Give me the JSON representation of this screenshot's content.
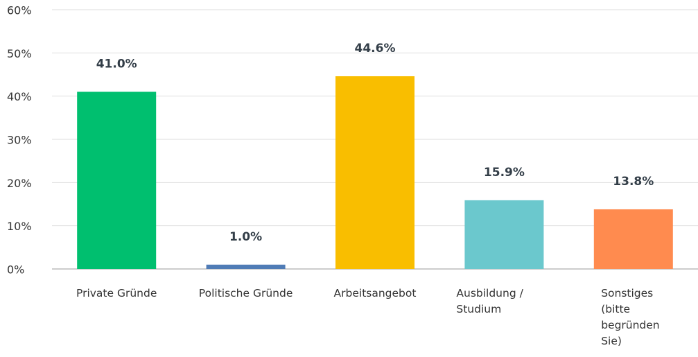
{
  "chart_data": {
    "type": "bar",
    "categories": [
      "Private Gründe",
      "Politische Gründe",
      "Arbeitsangebot",
      "Ausbildung / Studium",
      "Sonstiges (bitte begründen Sie)"
    ],
    "values": [
      41.0,
      1.0,
      44.6,
      15.9,
      13.8
    ],
    "value_labels": [
      "41.0%",
      "1.0%",
      "44.6%",
      "15.9%",
      "13.8%"
    ],
    "colors": [
      "#00bf6f",
      "#507cb6",
      "#f9be00",
      "#6bc8cd",
      "#ff8b4f"
    ],
    "ylim": [
      0,
      60
    ],
    "yticks": [
      {
        "value": 0,
        "label": "0%"
      },
      {
        "value": 10,
        "label": "10%"
      },
      {
        "value": 20,
        "label": "20%"
      },
      {
        "value": 30,
        "label": "30%"
      },
      {
        "value": 40,
        "label": "40%"
      },
      {
        "value": 50,
        "label": "50%"
      },
      {
        "value": 60,
        "label": "60%"
      }
    ],
    "grid": true
  }
}
